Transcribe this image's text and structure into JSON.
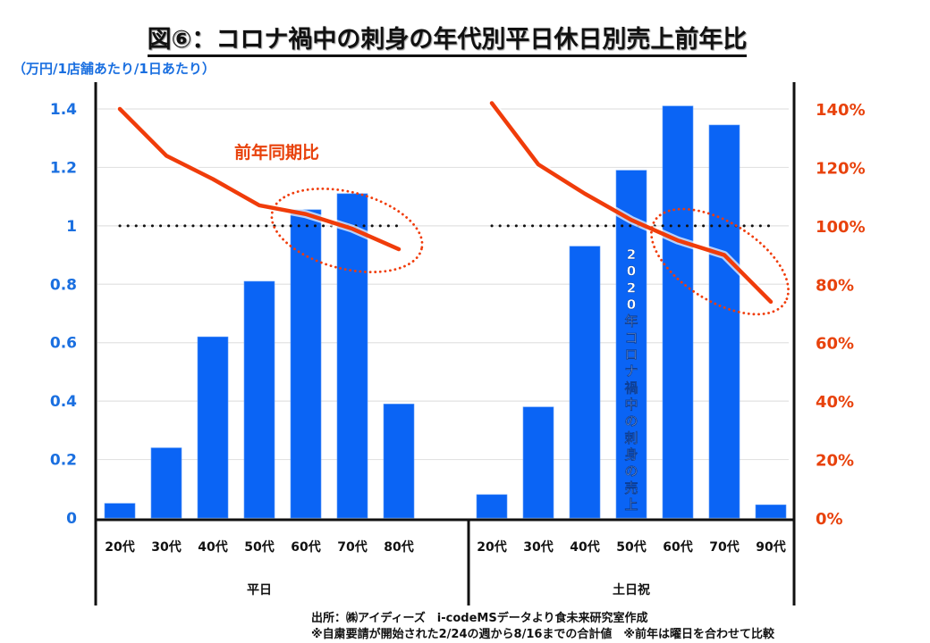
{
  "title": "図⑥：コロナ禍中の刺身の年代別平日休日別売上前年比",
  "unit_label": "（万円/1店舗あたり/1日あたり）",
  "source_line1": "出所：㈱アイディーズ　i-codeMSデータより食未来研究室作成",
  "source_line2": "※自粛要請が開始された2/24の週から8/16までの合計値　※前年は曜日を合わせて比較",
  "colors": {
    "bar": "#0a64f5",
    "line": "#f03c0a",
    "axis_left": "#1a6fe0",
    "axis_right": "#e8420c"
  },
  "chart_data": {
    "type": "bar+line",
    "title": "図⑥：コロナ禍中の刺身の年代別平日休日別売上前年比",
    "ylabel": "（万円/1店舗あたり/1日あたり）",
    "ylim": [
      0,
      1.4
    ],
    "y_ticks": [
      "0",
      "0.2",
      "0.4",
      "0.6",
      "0.8",
      "1",
      "1.2",
      "1.4"
    ],
    "y2lim": [
      0,
      140
    ],
    "y2_ticks": [
      "0%",
      "20%",
      "40%",
      "60%",
      "80%",
      "100%",
      "120%",
      "140%"
    ],
    "grid": true,
    "reference_line": 1.0,
    "groups": [
      {
        "name": "平日",
        "categories": [
          "20代",
          "30代",
          "40代",
          "50代",
          "60代",
          "70代",
          "80代"
        ],
        "sales": [
          0.05,
          0.24,
          0.62,
          0.81,
          1.055,
          1.11,
          0.39
        ],
        "yoy_percent": [
          140,
          124,
          116,
          107,
          104,
          99,
          92
        ]
      },
      {
        "name": "土日祝",
        "categories": [
          "20代",
          "30代",
          "40代",
          "50代",
          "60代",
          "70代",
          "90代"
        ],
        "sales": [
          0.08,
          0.38,
          0.93,
          1.19,
          1.41,
          1.345,
          0.045
        ],
        "yoy_percent": [
          142,
          121,
          111,
          102,
          95,
          90,
          74
        ]
      }
    ],
    "series": [
      {
        "name": "2020年コロナ禍中の刺身の売上",
        "type": "bar"
      },
      {
        "name": "前年同期比",
        "type": "line"
      }
    ],
    "annotations": [
      "前年同期比",
      "2020年コロナ禍中の刺身の売上"
    ]
  }
}
